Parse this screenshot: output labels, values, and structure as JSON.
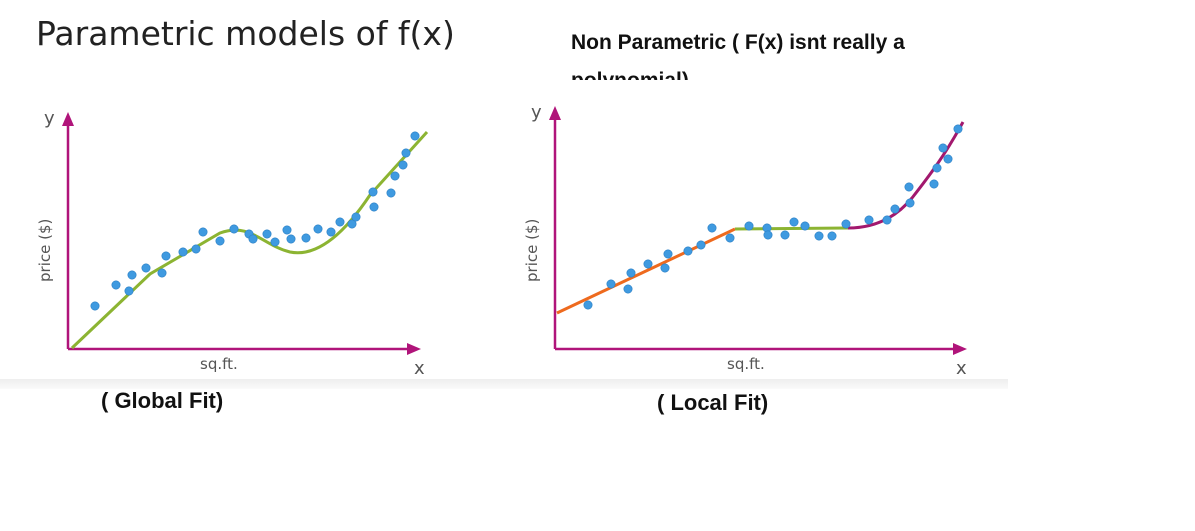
{
  "left": {
    "title": "Parametric models of f(x)",
    "caption": "( Global Fit)",
    "axis": {
      "y_letter": "y",
      "x_letter": "x",
      "ylabel": "price ($)",
      "xlabel": "sq.ft."
    }
  },
  "right": {
    "title": "Non Parametric ( F(x) isnt really a polynomial)",
    "caption": "( Local Fit)",
    "axis": {
      "y_letter": "y",
      "x_letter": "x",
      "ylabel": "price ($)",
      "xlabel": "sq.ft."
    }
  },
  "colors": {
    "axis": "#b0147a",
    "point": "#3f9ae0",
    "global_fit": "#8cb432",
    "local_fit_1": "#ee6a1e",
    "local_fit_2": "#8cb432",
    "local_fit_3": "#a2186e"
  }
}
